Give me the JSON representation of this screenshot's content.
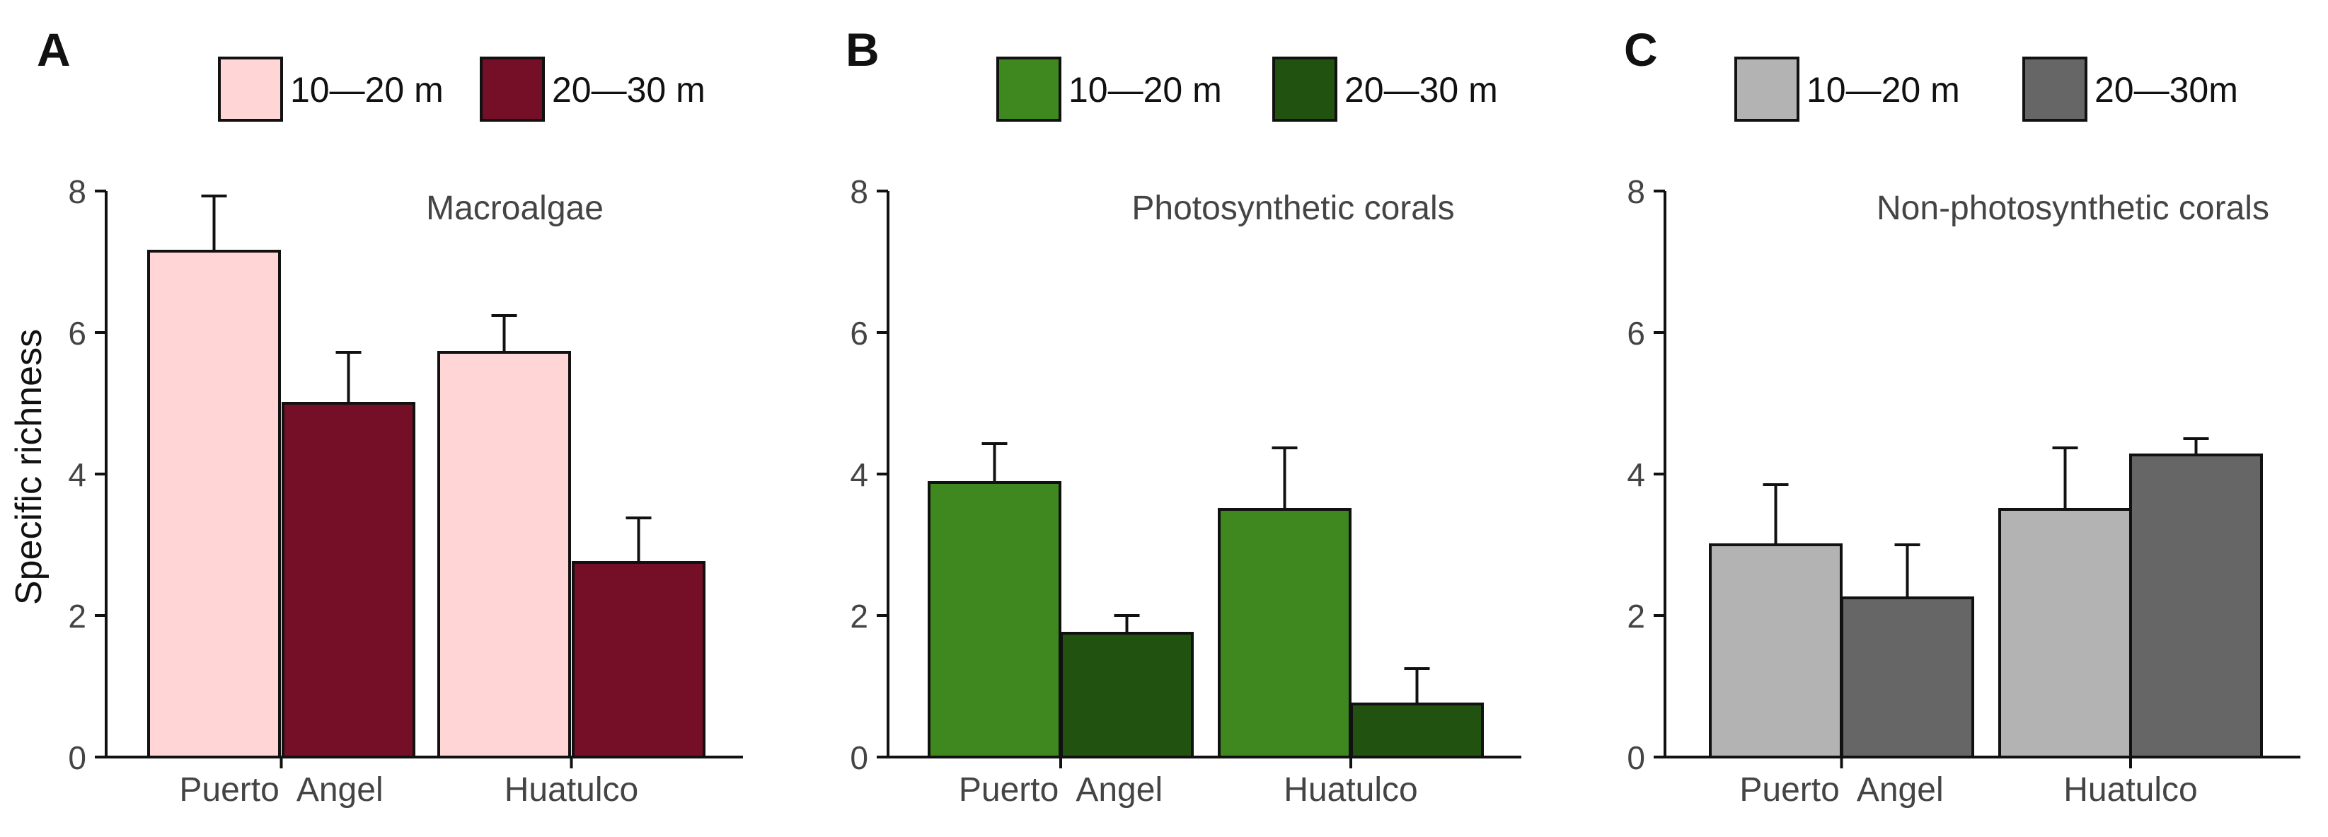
{
  "ylabel": "Specific richness",
  "chart_data": [
    {
      "type": "bar",
      "panel": "A",
      "title": "Macroalgae",
      "categories": [
        "Puerto  Angel",
        "Huatulco"
      ],
      "ylabel": "Specific richness",
      "ylim": [
        0,
        8
      ],
      "yticks": [
        0,
        2,
        4,
        6,
        8
      ],
      "legend": "top",
      "series": [
        {
          "name": "10—20 m",
          "color": "#FFD5D5",
          "values": [
            7.15,
            5.72
          ],
          "errors": [
            0.78,
            0.52
          ]
        },
        {
          "name": "20—30 m",
          "color": "#750F28",
          "values": [
            5.0,
            2.75
          ],
          "errors": [
            0.72,
            0.63
          ]
        }
      ]
    },
    {
      "type": "bar",
      "panel": "B",
      "title": "Photosynthetic corals",
      "categories": [
        "Puerto  Angel",
        "Huatulco"
      ],
      "ylim": [
        0,
        8
      ],
      "yticks": [
        0,
        2,
        4,
        6,
        8
      ],
      "legend": "top",
      "series": [
        {
          "name": "10—20 m",
          "color": "#3E881F",
          "values": [
            3.88,
            3.5
          ],
          "errors": [
            0.55,
            0.87
          ]
        },
        {
          "name": "20—30 m",
          "color": "#22520F",
          "values": [
            1.75,
            0.75
          ],
          "errors": [
            0.25,
            0.5
          ]
        }
      ]
    },
    {
      "type": "bar",
      "panel": "C",
      "title": "Non-photosynthetic corals",
      "categories": [
        "Puerto  Angel",
        "Huatulco"
      ],
      "ylim": [
        0,
        8
      ],
      "yticks": [
        0,
        2,
        4,
        6,
        8
      ],
      "legend": "top",
      "series": [
        {
          "name": "10—20 m",
          "color": "#B3B3B3",
          "values": [
            3.0,
            3.5
          ],
          "errors": [
            0.85,
            0.87
          ]
        },
        {
          "name": "20—30m",
          "color": "#666666",
          "values": [
            2.25,
            4.27
          ],
          "errors": [
            0.75,
            0.23
          ]
        }
      ]
    }
  ]
}
